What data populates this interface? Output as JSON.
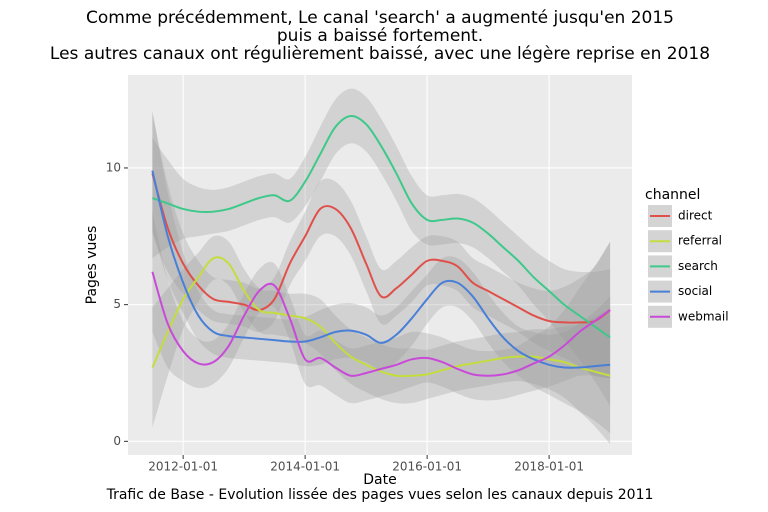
{
  "chart_data": {
    "type": "line",
    "title": [
      "Comme précédemment, Le canal 'search' a augmenté jusqu'en 2015",
      "puis a baissé fortement.",
      "Les autres canaux ont régulièrement baissé, avec une légère reprise en 2018"
    ],
    "caption": "Trafic de Base - Evolution lissée des pages vues selon les canaux depuis 2011",
    "x_label": "Date",
    "y_label": "Pages vues",
    "legend_title": "channel",
    "legend_position": "right",
    "grid": true,
    "x": [
      "2011-07-01",
      "2011-10-01",
      "2012-01-01",
      "2012-04-01",
      "2012-07-01",
      "2012-10-01",
      "2013-01-01",
      "2013-04-01",
      "2013-07-01",
      "2013-10-01",
      "2014-01-01",
      "2014-04-01",
      "2014-07-01",
      "2014-10-01",
      "2015-01-01",
      "2015-04-01",
      "2015-07-01",
      "2015-10-01",
      "2016-01-01",
      "2016-04-01",
      "2016-07-01",
      "2016-10-01",
      "2017-01-01",
      "2017-04-01",
      "2017-07-01",
      "2017-10-01",
      "2018-01-01",
      "2018-04-01",
      "2018-07-01",
      "2018-10-01",
      "2019-01-01"
    ],
    "xlim": [
      "2011-02-05",
      "2019-05-12"
    ],
    "xticks": [
      "2012-01-01",
      "2014-01-01",
      "2016-01-01",
      "2018-01-01"
    ],
    "ylim": [
      -0.5,
      13.4
    ],
    "yticks": [
      0,
      5,
      10
    ],
    "series": [
      {
        "name": "direct",
        "color": "#e0504a",
        "values": [
          9.8,
          7.8,
          6.5,
          5.7,
          5.2,
          5.1,
          5.0,
          4.8,
          5.2,
          6.5,
          7.5,
          8.5,
          8.5,
          7.8,
          6.5,
          5.3,
          5.6,
          6.1,
          6.6,
          6.6,
          6.4,
          5.8,
          5.5,
          5.2,
          4.9,
          4.6,
          4.4,
          4.35,
          4.35,
          4.4,
          4.8
        ],
        "ci": [
          2.2,
          1.6,
          1.1,
          0.9,
          0.8,
          0.8,
          0.8,
          0.8,
          0.8,
          0.8,
          0.9,
          1.0,
          1.0,
          1.0,
          1.0,
          1.0,
          1.0,
          1.0,
          0.9,
          0.9,
          0.9,
          0.9,
          0.9,
          0.9,
          0.9,
          1.0,
          1.1,
          1.3,
          1.6,
          2.0,
          2.5
        ]
      },
      {
        "name": "referral",
        "color": "#c3dd3f",
        "values": [
          2.7,
          4.0,
          5.2,
          6.0,
          6.7,
          6.5,
          5.5,
          4.8,
          4.7,
          4.6,
          4.5,
          4.2,
          3.6,
          3.1,
          2.8,
          2.55,
          2.4,
          2.4,
          2.45,
          2.6,
          2.75,
          2.85,
          2.95,
          3.05,
          3.1,
          3.1,
          3.0,
          2.9,
          2.7,
          2.55,
          2.4
        ],
        "ci": [
          2.2,
          1.6,
          1.1,
          0.9,
          0.8,
          0.8,
          0.8,
          0.8,
          0.8,
          0.8,
          0.9,
          1.0,
          1.0,
          1.0,
          1.0,
          1.0,
          1.0,
          1.0,
          0.9,
          0.9,
          0.9,
          0.9,
          0.9,
          0.9,
          0.9,
          1.0,
          1.1,
          1.3,
          1.6,
          2.0,
          2.5
        ]
      },
      {
        "name": "search",
        "color": "#3ec98a",
        "values": [
          8.9,
          8.7,
          8.5,
          8.4,
          8.4,
          8.5,
          8.7,
          8.9,
          9.0,
          8.8,
          9.5,
          10.5,
          11.5,
          11.9,
          11.6,
          10.8,
          9.8,
          8.7,
          8.1,
          8.1,
          8.15,
          8.0,
          7.6,
          7.1,
          6.6,
          6.0,
          5.5,
          5.0,
          4.6,
          4.2,
          3.8
        ],
        "ci": [
          2.2,
          1.6,
          1.1,
          0.9,
          0.8,
          0.8,
          0.8,
          0.8,
          0.8,
          0.8,
          0.9,
          1.0,
          1.0,
          1.0,
          1.0,
          1.0,
          1.0,
          1.0,
          0.9,
          0.9,
          0.9,
          0.9,
          0.9,
          0.9,
          0.9,
          1.0,
          1.1,
          1.3,
          1.6,
          2.0,
          2.5
        ]
      },
      {
        "name": "social",
        "color": "#4a7fd8",
        "values": [
          9.9,
          7.5,
          5.8,
          4.6,
          4.0,
          3.85,
          3.8,
          3.75,
          3.7,
          3.65,
          3.65,
          3.8,
          4.0,
          4.05,
          3.9,
          3.6,
          3.9,
          4.5,
          5.2,
          5.8,
          5.8,
          5.3,
          4.5,
          3.8,
          3.3,
          3.0,
          2.8,
          2.7,
          2.7,
          2.75,
          2.8
        ],
        "ci": [
          2.2,
          1.6,
          1.1,
          0.9,
          0.8,
          0.8,
          0.8,
          0.8,
          0.8,
          0.8,
          0.9,
          1.0,
          1.0,
          1.0,
          1.0,
          1.0,
          1.0,
          1.0,
          0.9,
          0.9,
          0.9,
          0.9,
          0.9,
          0.9,
          0.9,
          1.0,
          1.1,
          1.3,
          1.6,
          2.0,
          2.5
        ]
      },
      {
        "name": "webmail",
        "color": "#c84ad8",
        "values": [
          6.2,
          4.3,
          3.3,
          2.85,
          2.9,
          3.5,
          4.6,
          5.5,
          5.7,
          4.5,
          3.0,
          3.05,
          2.7,
          2.4,
          2.5,
          2.65,
          2.8,
          3.0,
          3.05,
          2.9,
          2.65,
          2.45,
          2.4,
          2.45,
          2.6,
          2.85,
          3.1,
          3.5,
          4.0,
          4.4,
          4.8
        ],
        "ci": [
          2.2,
          1.6,
          1.1,
          0.9,
          0.8,
          0.8,
          0.8,
          0.8,
          0.8,
          0.8,
          0.9,
          1.0,
          1.0,
          1.0,
          1.0,
          1.0,
          1.0,
          1.0,
          0.9,
          0.9,
          0.9,
          0.9,
          0.9,
          0.9,
          0.9,
          1.0,
          1.1,
          1.3,
          1.6,
          2.0,
          2.5
        ]
      }
    ]
  }
}
